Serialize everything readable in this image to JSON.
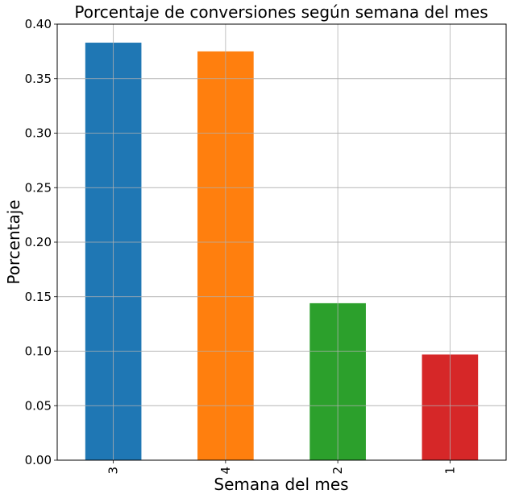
{
  "chart_data": {
    "type": "bar",
    "title": "Porcentaje de conversiones según semana del mes",
    "xlabel": "Semana del mes",
    "ylabel": "Porcentaje",
    "categories": [
      "3",
      "4",
      "2",
      "1"
    ],
    "values": [
      0.383,
      0.375,
      0.144,
      0.097
    ],
    "colors": [
      "#1f77b4",
      "#ff7f0e",
      "#2ca02c",
      "#d62728"
    ],
    "ylim": [
      0,
      0.4
    ],
    "yticks": [
      "0.00",
      "0.05",
      "0.10",
      "0.15",
      "0.20",
      "0.25",
      "0.30",
      "0.35",
      "0.40"
    ],
    "grid": true,
    "legend": "none"
  }
}
